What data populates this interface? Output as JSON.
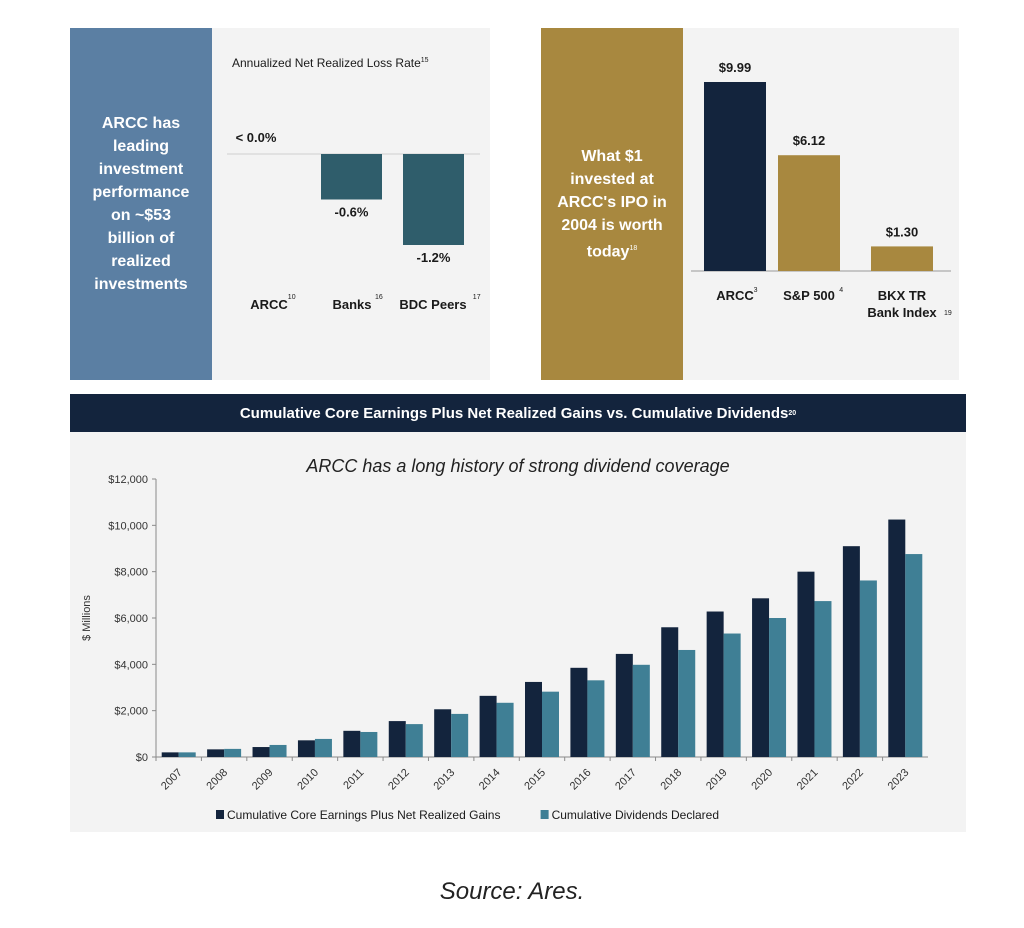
{
  "left_panel": {
    "box_text": "ARCC has\nleading\ninvestment\nperformance\non ~$53\nbillion of\nrealized\ninvestments",
    "title": "Annualized Net Realized Loss Rate",
    "title_sup": "15",
    "chart_data": {
      "type": "bar",
      "title": "Annualized Net Realized Loss Rate",
      "categories": [
        "ARCC",
        "Banks",
        "BDC Peers"
      ],
      "category_sups": [
        "10",
        "16",
        "17"
      ],
      "values": [
        0.0,
        -0.6,
        -1.2
      ],
      "value_labels": [
        "< 0.0%",
        "-0.6%",
        "-1.2%"
      ],
      "color": "#2f5d6b"
    }
  },
  "right_panel": {
    "box_text": "What $1\ninvested at\nARCC's IPO in\n2004 is worth\ntoday",
    "box_sup": "18",
    "chart_data": {
      "type": "bar",
      "categories": [
        "ARCC",
        "S&P 500",
        "BKX TR Bank Index"
      ],
      "category_lines": [
        [
          "ARCC"
        ],
        [
          "S&P 500"
        ],
        [
          "BKX TR",
          "Bank Index"
        ]
      ],
      "category_sups": [
        "3",
        "4",
        "19"
      ],
      "values": [
        9.99,
        6.12,
        1.3
      ],
      "value_labels": [
        "$9.99",
        "$6.12",
        "$1.30"
      ],
      "colors": [
        "#13243d",
        "#a8883f",
        "#a8883f"
      ]
    }
  },
  "bottom": {
    "header": "Cumulative Core Earnings Plus Net Realized Gains vs. Cumulative Dividends",
    "header_sup": "20",
    "subtitle": "ARCC has a long history of strong dividend coverage",
    "source": "Source: Ares.",
    "chart_data": {
      "type": "bar",
      "ylabel": "$ Millions",
      "ylim": [
        0,
        12000
      ],
      "yticks": [
        0,
        2000,
        4000,
        6000,
        8000,
        10000,
        12000
      ],
      "ytick_labels": [
        "$0",
        "$2,000",
        "$4,000",
        "$6,000",
        "$8,000",
        "$10,000",
        "$12,000"
      ],
      "categories": [
        "2007",
        "2008",
        "2009",
        "2010",
        "2011",
        "2012",
        "2013",
        "2014",
        "2015",
        "2016",
        "2017",
        "2018",
        "2019",
        "2020",
        "2021",
        "2022",
        "2023"
      ],
      "series": [
        {
          "name": "Cumulative Core Earnings Plus Net Realized Gains",
          "color": "#13243d",
          "values": [
            200,
            330,
            430,
            720,
            1130,
            1550,
            2060,
            2640,
            3240,
            3850,
            4450,
            5600,
            6280,
            6850,
            8000,
            9100,
            10250
          ]
        },
        {
          "name": "Cumulative Dividends Declared",
          "color": "#3f7f95",
          "values": [
            200,
            350,
            520,
            780,
            1080,
            1420,
            1860,
            2340,
            2820,
            3310,
            3980,
            4620,
            5330,
            6000,
            6730,
            7620,
            8760
          ]
        }
      ],
      "legend_position": "bottom"
    }
  }
}
